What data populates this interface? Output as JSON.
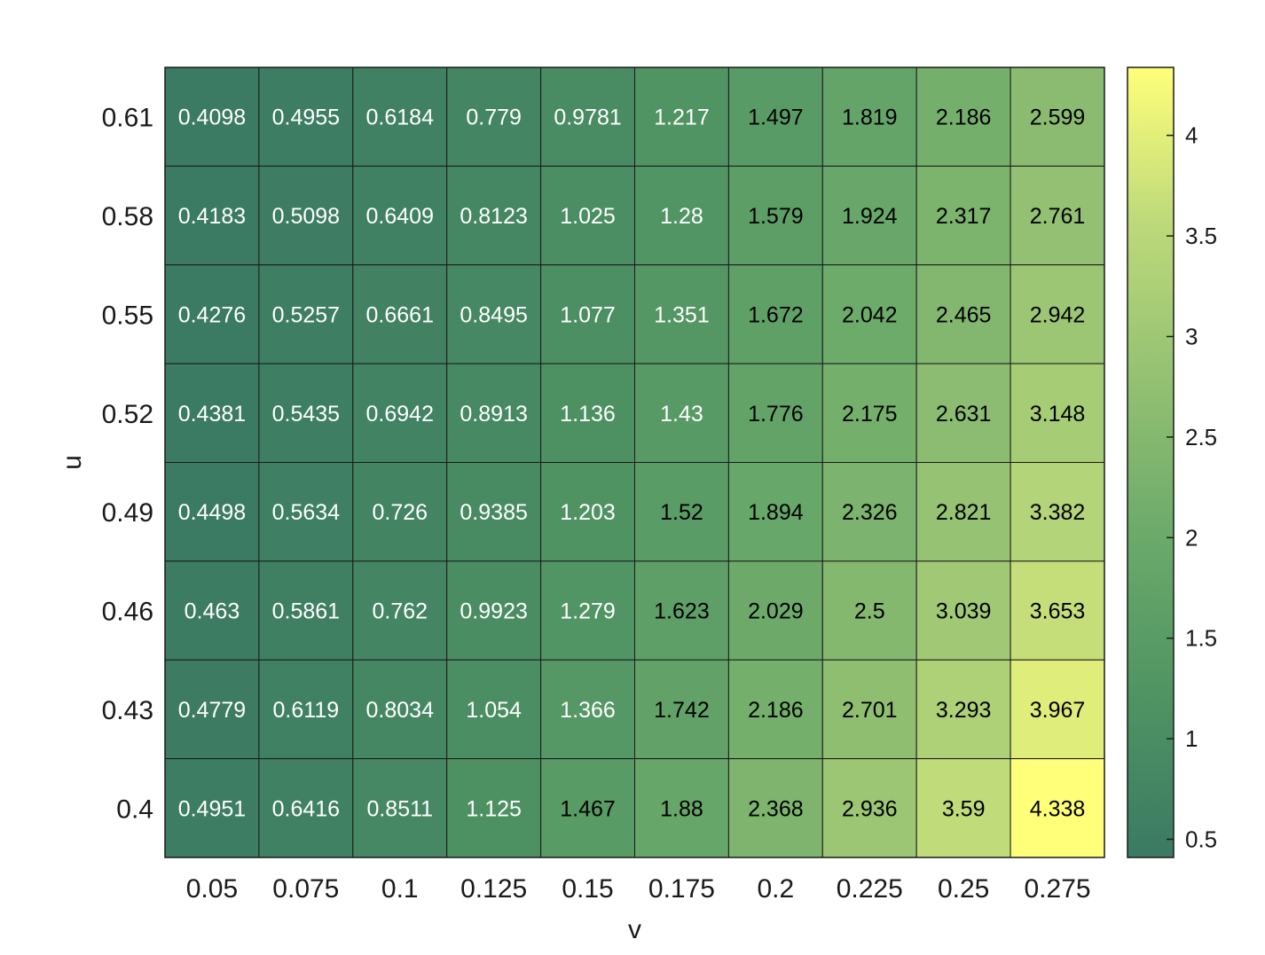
{
  "chart_data": {
    "type": "heatmap",
    "title": "",
    "xlabel": "v",
    "ylabel": "u",
    "x_categories": [
      "0.05",
      "0.075",
      "0.1",
      "0.125",
      "0.15",
      "0.175",
      "0.2",
      "0.225",
      "0.25",
      "0.275"
    ],
    "y_categories": [
      "0.61",
      "0.58",
      "0.55",
      "0.52",
      "0.49",
      "0.46",
      "0.43",
      "0.4"
    ],
    "values": [
      [
        "0.4098",
        "0.4955",
        "0.6184",
        "0.779",
        "0.9781",
        "1.217",
        "1.497",
        "1.819",
        "2.186",
        "2.599"
      ],
      [
        "0.4183",
        "0.5098",
        "0.6409",
        "0.8123",
        "1.025",
        "1.28",
        "1.579",
        "1.924",
        "2.317",
        "2.761"
      ],
      [
        "0.4276",
        "0.5257",
        "0.6661",
        "0.8495",
        "1.077",
        "1.351",
        "1.672",
        "2.042",
        "2.465",
        "2.942"
      ],
      [
        "0.4381",
        "0.5435",
        "0.6942",
        "0.8913",
        "1.136",
        "1.43",
        "1.776",
        "2.175",
        "2.631",
        "3.148"
      ],
      [
        "0.4498",
        "0.5634",
        "0.726",
        "0.9385",
        "1.203",
        "1.52",
        "1.894",
        "2.326",
        "2.821",
        "3.382"
      ],
      [
        "0.463",
        "0.5861",
        "0.762",
        "0.9923",
        "1.279",
        "1.623",
        "2.029",
        "2.5",
        "3.039",
        "3.653"
      ],
      [
        "0.4779",
        "0.6119",
        "0.8034",
        "1.054",
        "1.366",
        "1.742",
        "2.186",
        "2.701",
        "3.293",
        "3.967"
      ],
      [
        "0.4951",
        "0.6416",
        "0.8511",
        "1.125",
        "1.467",
        "1.88",
        "2.368",
        "2.936",
        "3.59",
        "4.338"
      ]
    ],
    "colorbar": {
      "ticks": [
        "0.5",
        "1",
        "1.5",
        "2",
        "2.5",
        "3",
        "3.5",
        "4"
      ],
      "range": [
        0.4098,
        4.338
      ],
      "colors": [
        "#3b7a63",
        "#4f9363",
        "#6aa96a",
        "#93c072",
        "#bcd97a",
        "#ffff7a"
      ]
    },
    "grid": true,
    "legend": "colorbar-right"
  }
}
